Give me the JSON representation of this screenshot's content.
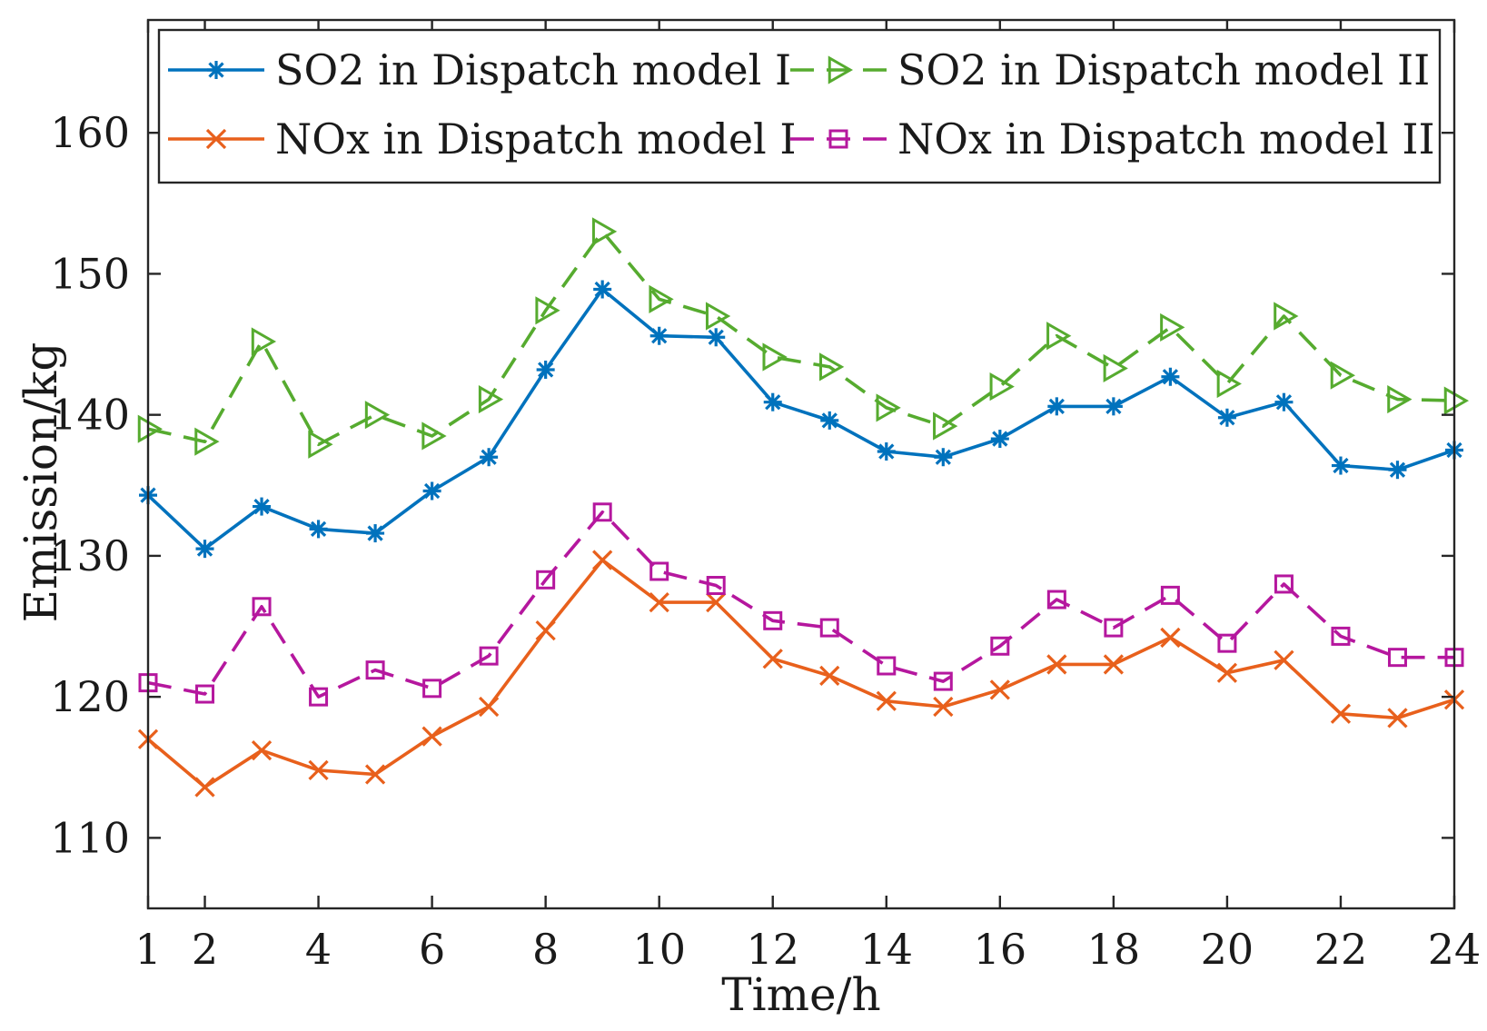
{
  "chart_data": {
    "type": "line",
    "title": "",
    "xlabel": "Time/h",
    "ylabel": "Emission/kg",
    "xlim": [
      1,
      24
    ],
    "ylim": [
      105,
      168
    ],
    "xticks": [
      1,
      2,
      4,
      6,
      8,
      10,
      12,
      14,
      16,
      18,
      20,
      22,
      24
    ],
    "yticks": [
      110,
      120,
      130,
      140,
      150,
      160
    ],
    "x": [
      1,
      2,
      3,
      4,
      5,
      6,
      7,
      8,
      9,
      10,
      11,
      12,
      13,
      14,
      15,
      16,
      17,
      18,
      19,
      20,
      21,
      22,
      23,
      24
    ],
    "legend_position": "top",
    "series": [
      {
        "name": "SO2 in Dispatch model I",
        "color": "#0072bd",
        "line_style": "solid",
        "marker": "asterisk",
        "values": [
          134.3,
          130.5,
          133.5,
          131.9,
          131.6,
          134.6,
          137.0,
          143.2,
          148.9,
          145.6,
          145.5,
          140.9,
          139.6,
          137.4,
          137.0,
          138.3,
          140.6,
          140.6,
          142.7,
          139.8,
          140.9,
          136.4,
          136.1,
          137.5
        ]
      },
      {
        "name": "SO2 in Dispatch model II",
        "color": "#56ab2f",
        "line_style": "dashed",
        "marker": "triangle-right",
        "values": [
          139.0,
          138.1,
          145.2,
          137.9,
          140.0,
          138.5,
          141.1,
          147.4,
          153.0,
          148.2,
          147.0,
          144.1,
          143.4,
          140.5,
          139.2,
          142.0,
          145.6,
          143.3,
          146.2,
          142.2,
          147.0,
          142.8,
          141.1,
          141.0
        ]
      },
      {
        "name": "NOx in Dispatch model I",
        "color": "#e8601c",
        "line_style": "solid",
        "marker": "x",
        "values": [
          117.0,
          113.6,
          116.2,
          114.8,
          114.5,
          117.2,
          119.3,
          124.7,
          129.7,
          126.7,
          126.7,
          122.7,
          121.5,
          119.7,
          119.3,
          120.5,
          122.3,
          122.3,
          124.2,
          121.7,
          122.6,
          118.8,
          118.5,
          119.8
        ]
      },
      {
        "name": "NOx in Dispatch model II",
        "color": "#b5179e",
        "line_style": "dashed",
        "marker": "square",
        "values": [
          121.0,
          120.2,
          126.4,
          120.0,
          121.9,
          120.6,
          122.9,
          128.3,
          133.1,
          128.9,
          127.9,
          125.4,
          124.9,
          122.2,
          121.1,
          123.6,
          126.9,
          124.9,
          127.2,
          123.8,
          128.0,
          124.3,
          122.8,
          122.8
        ]
      }
    ]
  }
}
